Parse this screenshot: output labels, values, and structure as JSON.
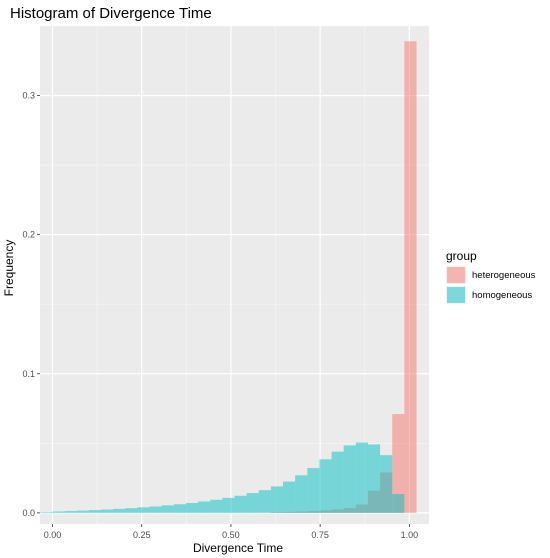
{
  "chart_data": {
    "type": "bar",
    "title": "Histogram of Divergence Time",
    "xlabel": "Divergence Time",
    "ylabel": "Frequency",
    "xlim": [
      -0.035,
      1.055
    ],
    "ylim": [
      -0.008,
      0.35
    ],
    "x_ticks": [
      {
        "value": 0.0,
        "label": "0.00"
      },
      {
        "value": 0.25,
        "label": "0.25"
      },
      {
        "value": 0.5,
        "label": "0.50"
      },
      {
        "value": 0.75,
        "label": "0.75"
      },
      {
        "value": 1.0,
        "label": "1.00"
      }
    ],
    "y_ticks": [
      {
        "value": 0.0,
        "label": "0.0"
      },
      {
        "value": 0.1,
        "label": "0.1"
      },
      {
        "value": 0.2,
        "label": "0.2"
      },
      {
        "value": 0.3,
        "label": "0.3"
      }
    ],
    "bin_width": 0.034,
    "grid": true,
    "legend": {
      "title": "group",
      "position": "right"
    },
    "series": [
      {
        "name": "heterogeneous",
        "color": "#F8766D",
        "opacity": 0.5,
        "x": [
          -0.017,
          0.017,
          0.051,
          0.085,
          0.119,
          0.153,
          0.187,
          0.221,
          0.255,
          0.289,
          0.323,
          0.357,
          0.391,
          0.425,
          0.459,
          0.493,
          0.527,
          0.561,
          0.595,
          0.629,
          0.663,
          0.697,
          0.731,
          0.765,
          0.799,
          0.833,
          0.867,
          0.901,
          0.935,
          0.969,
          1.003
        ],
        "values": [
          0.0,
          0.0,
          0.0,
          0.0,
          0.0,
          0.0,
          0.0,
          0.0,
          0.0,
          0.0,
          0.0,
          0.0,
          0.0,
          0.0,
          0.0,
          0.0,
          0.0,
          0.0,
          0.0,
          0.0005,
          0.0007,
          0.001,
          0.0013,
          0.0018,
          0.0025,
          0.0035,
          0.006,
          0.016,
          0.029,
          0.071,
          0.339
        ]
      },
      {
        "name": "homogeneous",
        "color": "#00BFC4",
        "opacity": 0.5,
        "x": [
          -0.017,
          0.017,
          0.051,
          0.085,
          0.119,
          0.153,
          0.187,
          0.221,
          0.255,
          0.289,
          0.323,
          0.357,
          0.391,
          0.425,
          0.459,
          0.493,
          0.527,
          0.561,
          0.595,
          0.629,
          0.663,
          0.697,
          0.731,
          0.765,
          0.799,
          0.833,
          0.867,
          0.901,
          0.935,
          0.969,
          1.003
        ],
        "values": [
          0.0005,
          0.001,
          0.0013,
          0.0016,
          0.002,
          0.0024,
          0.0029,
          0.0034,
          0.004,
          0.0046,
          0.0054,
          0.0062,
          0.0071,
          0.0082,
          0.0094,
          0.0108,
          0.0123,
          0.0142,
          0.0163,
          0.019,
          0.0225,
          0.027,
          0.0322,
          0.0385,
          0.044,
          0.0485,
          0.0505,
          0.0492,
          0.0415,
          0.0135,
          0.0
        ]
      }
    ]
  }
}
